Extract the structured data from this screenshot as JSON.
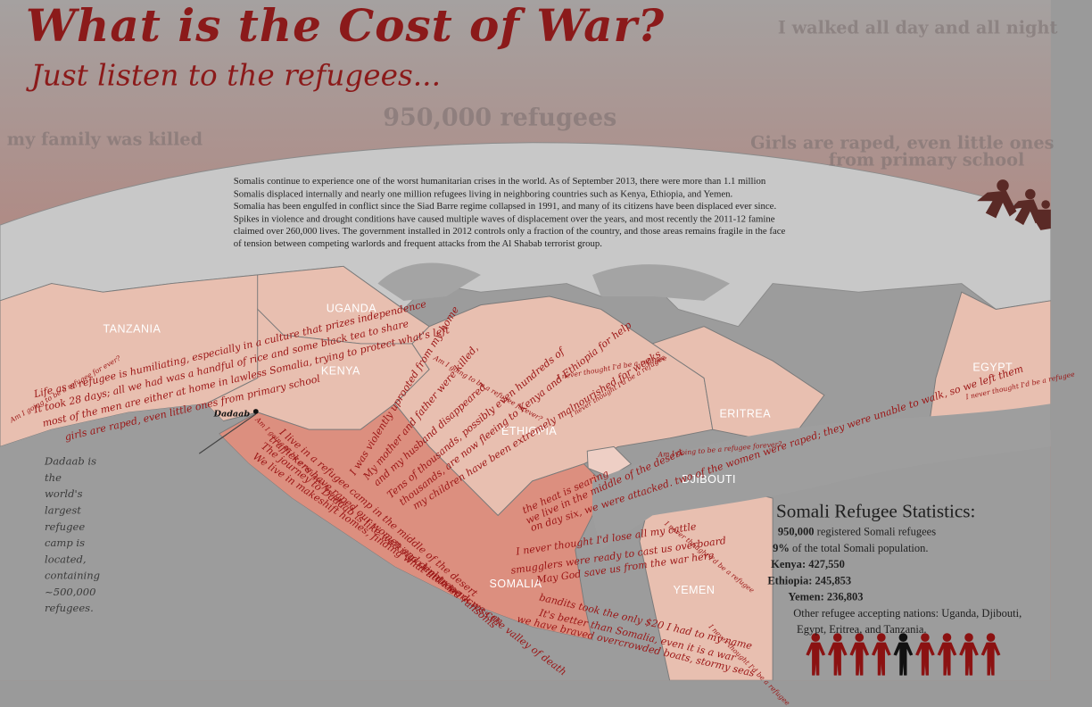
{
  "title": "What is the Cost of War?",
  "subtitle": "Just listen to the refugees...",
  "background_quotes": {
    "walked": "I walked all day and all night",
    "refugees": "950,000 refugees",
    "family": "my family was killed",
    "girls_line1": "Girls are raped, even little ones",
    "girls_line2": "from primary school"
  },
  "info": {
    "paragraph1": "Somalis continue to experience one of the worst humanitarian crises in the world. As of September 2013, there were more than 1.1 million Somalis displaced internally and nearly one million refugees living in neighboring countries such as Kenya, Ethiopia, and Yemen.",
    "paragraph2": "Somalia has been engulfed in conflict since the Siad Barre regime collapsed in 1991, and many of its citizens have been displaced ever since. Spikes in violence and drought conditions have caused multiple waves of displacement over the years, and most recently the 2011-12 famine claimed over 260,000 lives. The government installed in 2012 controls only a fraction of the country, and those areas remains fragile in the face of tension between competing warlords and frequent attacks from the Al Shabab terrorist group."
  },
  "map": {
    "countries": {
      "tanzania": "TANZANIA",
      "uganda": "UGANDA",
      "kenya": "KENYA",
      "ethiopia": "ETHIOPIA",
      "eritrea": "ERITREA",
      "egypt": "EGYPT",
      "djibouti": "DJIBOUTI",
      "somalia": "SOMALIA",
      "yemen": "YEMEN"
    },
    "camp_label": "Dadaab",
    "camp_note": [
      "Dadaab is the world's largest",
      "refugee camp is located,",
      "containing ~500,000 refugees."
    ],
    "colors": {
      "host_country": "#e8bfb0",
      "somalia": "#dc8f7f",
      "water": "#9e9e9e",
      "other_land": "#c8c8c8",
      "story_text": "#9b1515"
    }
  },
  "stories": {
    "s1": "Life as a refugee is humiliating, especially in a culture that prizes independence",
    "s2": "It took 28 days; all we had was a handful of rice and some black tea to share",
    "s3": "most of the men are either at home in lawless Somalia, trying to protect what's left",
    "s4": "girls are raped, even little ones from primary school",
    "s5": "Am I going to be a refugee for ever?",
    "s6": "I was violently uprooted from my home",
    "s7": "My mother and father were killed,",
    "s8": "and my husband disappeared",
    "s9": "Am I going to be a refugee forever?",
    "s10": "I never thought I'd be a refugee",
    "s11": "Tens of thousands, possibly even hundreds of",
    "s12": "thousands, are now fleeing to Kenya and Ethiopia for help",
    "s13": "my children have been extremely malnourished for weeks",
    "s14": "I live in a refugee camp in the middle of the desert",
    "s15": "traffickers have raped our women and demanded ransoms",
    "s16": "The journey to Dadaab is like walking a tightrope across the valley of death",
    "s17": "We live in makeshift homes, finding what little work we can",
    "s18": "the heat is searing",
    "s19": "we live in the middle of the desert",
    "s20": "on day six, we were attacked. two of the women were raped; they were unable to walk, so we left them",
    "s21": "I never thought I'd lose all my cattle",
    "s22": "smugglers were ready to cast us overboard",
    "s23": "May God save us from the war here",
    "s24": "bandits took the only $20 I had to my name",
    "s25": "It's better than Somalia, even it is a war",
    "s26": "we have braved overcrowded boats, stormy seas",
    "s27": "I never thought I'd be a refugee",
    "s28": "I never thought I'd be a refugee",
    "s29": "I never thought I'd be a refugee",
    "s30": "Am I going to be a refugee forever?",
    "s31": "Am I going to be a refugee forever?",
    "s32": "I never thought I'd be a refugee"
  },
  "stats": {
    "title": "Somali Refugee Statistics:",
    "registered_value": "950,000",
    "registered_label": "registered Somali refugees",
    "percent_value": "9%",
    "percent_label": "of the total Somali population.",
    "kenya_label": "Kenya:",
    "kenya_value": "427,550",
    "ethiopia_label": "Ethiopia:",
    "ethiopia_value": "245,853",
    "yemen_label": "Yemen:",
    "yemen_value": "236,803",
    "other_line1": "Other refugee accepting nations: Uganda, Djibouti,",
    "other_line2": "Egypt, Eritrea, and Tanzania.",
    "people_icons": {
      "total": 9,
      "highlighted": 1,
      "highlight_color": "#111111",
      "base_color": "#8b1212"
    }
  }
}
